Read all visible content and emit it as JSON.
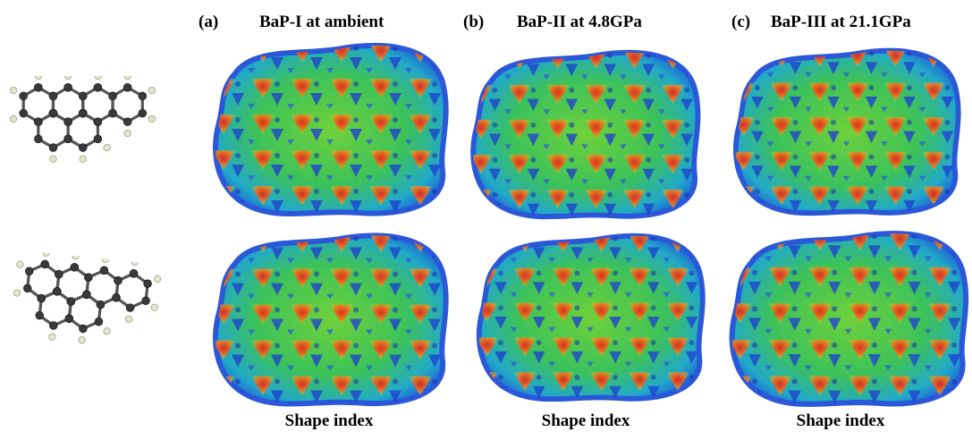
{
  "panels": [
    {
      "label": "(a)",
      "title": "BaP-I at ambient",
      "caption": "Shape index"
    },
    {
      "label": "(b)",
      "title": "BaP-II at 4.8GPa",
      "caption": "Shape index"
    },
    {
      "label": "(c)",
      "title": "BaP-III at 21.1GPa",
      "caption": "Shape index"
    }
  ]
}
